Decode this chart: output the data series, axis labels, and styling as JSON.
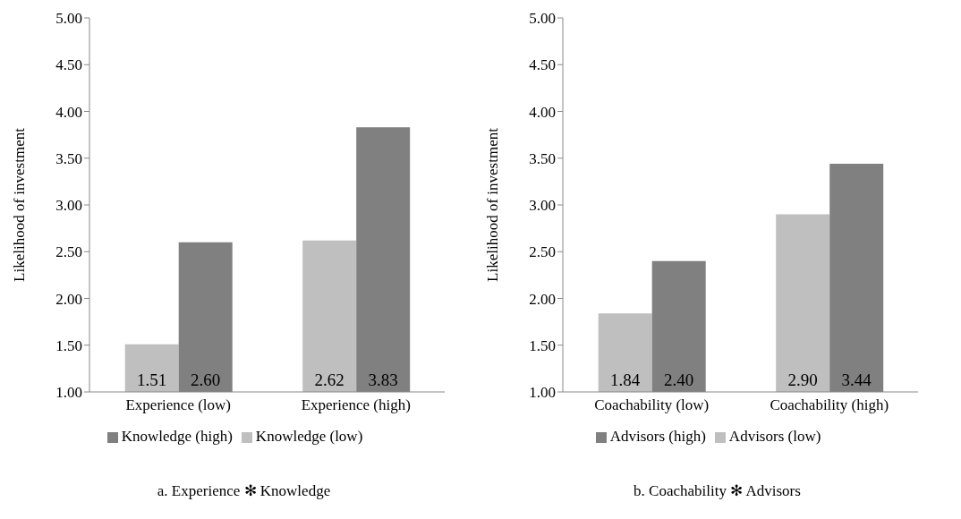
{
  "chart_data": [
    {
      "type": "bar",
      "title": "a. Experience ✻ Knowledge",
      "ylabel": "Likelihood of investment",
      "categories": [
        "Experience (low)",
        "Experience (high)"
      ],
      "series": [
        {
          "name": "Knowledge (low)",
          "color": "#bfbfbf",
          "values": [
            1.51,
            2.62
          ],
          "value_labels": [
            "1.51",
            "2.62"
          ]
        },
        {
          "name": "Knowledge (high)",
          "color": "#808080",
          "values": [
            2.6,
            3.83
          ],
          "value_labels": [
            "2.60",
            "3.83"
          ]
        }
      ],
      "ylim": [
        1,
        5
      ],
      "yticks": [
        {
          "value": 1,
          "label": "1.00"
        },
        {
          "value": 1.5,
          "label": "1.50"
        },
        {
          "value": 2,
          "label": "2.00"
        },
        {
          "value": 2.5,
          "label": "2.50"
        },
        {
          "value": 3,
          "label": "3.00"
        },
        {
          "value": 3.5,
          "label": "3.50"
        },
        {
          "value": 4,
          "label": "4.00"
        },
        {
          "value": 4.5,
          "label": "4.50"
        },
        {
          "value": 5,
          "label": "5.00"
        }
      ],
      "grid": false,
      "legend": "bottom"
    },
    {
      "type": "bar",
      "title": "b. Coachability ✻ Advisors",
      "ylabel": "Likelihood of investment",
      "categories": [
        "Coachability (low)",
        "Coachability (high)"
      ],
      "series": [
        {
          "name": "Advisors (low)",
          "color": "#bfbfbf",
          "values": [
            1.84,
            2.9
          ],
          "value_labels": [
            "1.84",
            "2.90"
          ]
        },
        {
          "name": "Advisors (high)",
          "color": "#808080",
          "values": [
            2.4,
            3.44
          ],
          "value_labels": [
            "2.40",
            "3.44"
          ]
        }
      ],
      "ylim": [
        1,
        5
      ],
      "yticks": [
        {
          "value": 1,
          "label": "1.00"
        },
        {
          "value": 1.5,
          "label": "1.50"
        },
        {
          "value": 2,
          "label": "2.00"
        },
        {
          "value": 2.5,
          "label": "2.50"
        },
        {
          "value": 3,
          "label": "3.00"
        },
        {
          "value": 3.5,
          "label": "3.50"
        },
        {
          "value": 4,
          "label": "4.00"
        },
        {
          "value": 4.5,
          "label": "4.50"
        },
        {
          "value": 5,
          "label": "5.00"
        }
      ],
      "grid": false,
      "legend": "bottom"
    }
  ]
}
